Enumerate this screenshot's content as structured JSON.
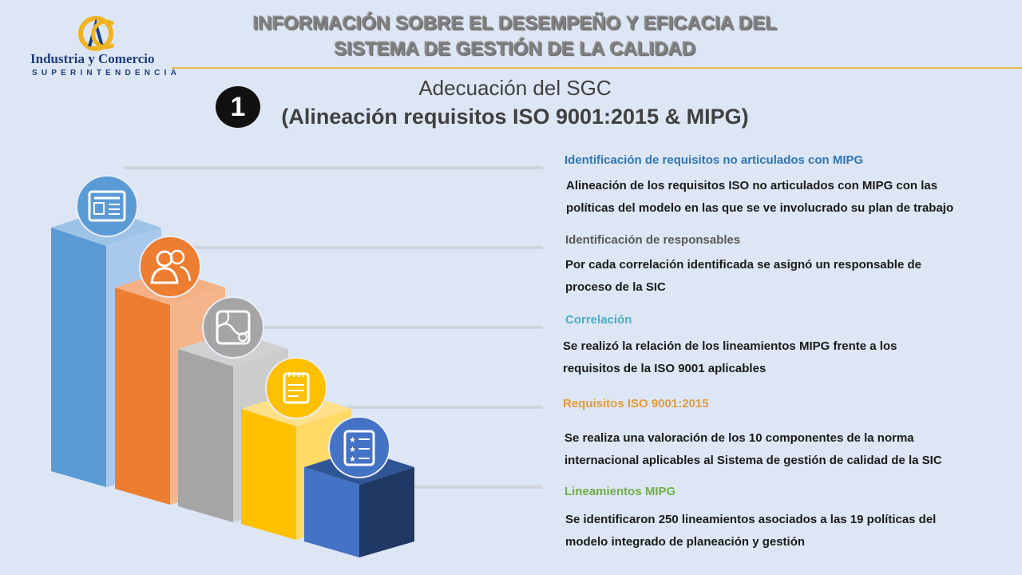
{
  "logo": {
    "name": "Industria y Comercio",
    "sub": "SUPERINTENDENCIA"
  },
  "header": {
    "title_line1": "INFORMACIÓN SOBRE EL DESEMPEÑO Y EFICACIA DEL",
    "title_line2": "SISTEMA DE GESTIÓN DE LA  CALIDAD"
  },
  "section": {
    "number": "1",
    "subtitle_line1": "Adecuación del SGC",
    "subtitle_line2": "(Alineación requisitos ISO 9001:2015 & MIPG)"
  },
  "items": [
    {
      "heading": "Identificación de requisitos no articulados con MIPG",
      "heading_color": "#2e75b6",
      "line1": "Alineación de los requisitos ISO no articulados con MIPG con las",
      "line2": "políticas del modelo en las que se ve involucrado su plan de trabajo",
      "icon": "newspaper-icon",
      "color": "#5b9bd5"
    },
    {
      "heading": "Identificación de responsables",
      "heading_color": "#595959",
      "line1": "Por cada correlación identificada se asignó un responsable de",
      "line2": "proceso de la SIC",
      "icon": "people-icon",
      "color": "#ed7d31"
    },
    {
      "heading": "Correlación",
      "heading_color": "#4bacc6",
      "line1": "Se realizó la relación de los lineamientos MIPG frente a los",
      "line2": "requisitos de la ISO 9001  aplicables",
      "icon": "map-icon",
      "color": "#a5a5a5"
    },
    {
      "heading": "Requisitos ISO 9001:2015",
      "heading_color": "#e39a3b",
      "line1": "Se realiza una valoración de los 10 componentes de la norma",
      "line2": "internacional aplicables al Sistema de gestión de calidad de la SIC",
      "icon": "notepad-icon",
      "color": "#ffc000"
    },
    {
      "heading": "Lineamientos MIPG",
      "heading_color": "#70ad47",
      "line1": "Se identificaron 250 lineamientos asociados a las 19 políticas del",
      "line2": "modelo integrado de planeación y gestión",
      "icon": "star-checklist-icon",
      "color": "#4472c4"
    }
  ]
}
